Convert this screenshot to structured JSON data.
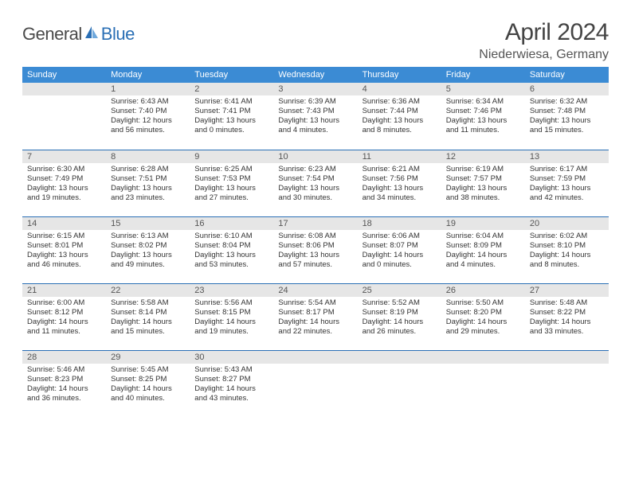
{
  "logo": {
    "text1": "General",
    "text2": "Blue"
  },
  "title": "April 2024",
  "location": "Niederwiesa, Germany",
  "weekdays": [
    "Sunday",
    "Monday",
    "Tuesday",
    "Wednesday",
    "Thursday",
    "Friday",
    "Saturday"
  ],
  "colors": {
    "header_bg": "#3b8bd4",
    "header_text": "#ffffff",
    "daynum_bg": "#e6e6e6",
    "rule": "#2a6fb5",
    "logo_gray": "#4a4a4a",
    "logo_blue": "#2a6fb5"
  },
  "leading_blanks": 1,
  "days": [
    {
      "n": 1,
      "sunrise": "6:43 AM",
      "sunset": "7:40 PM",
      "daylight": "12 hours and 56 minutes."
    },
    {
      "n": 2,
      "sunrise": "6:41 AM",
      "sunset": "7:41 PM",
      "daylight": "13 hours and 0 minutes."
    },
    {
      "n": 3,
      "sunrise": "6:39 AM",
      "sunset": "7:43 PM",
      "daylight": "13 hours and 4 minutes."
    },
    {
      "n": 4,
      "sunrise": "6:36 AM",
      "sunset": "7:44 PM",
      "daylight": "13 hours and 8 minutes."
    },
    {
      "n": 5,
      "sunrise": "6:34 AM",
      "sunset": "7:46 PM",
      "daylight": "13 hours and 11 minutes."
    },
    {
      "n": 6,
      "sunrise": "6:32 AM",
      "sunset": "7:48 PM",
      "daylight": "13 hours and 15 minutes."
    },
    {
      "n": 7,
      "sunrise": "6:30 AM",
      "sunset": "7:49 PM",
      "daylight": "13 hours and 19 minutes."
    },
    {
      "n": 8,
      "sunrise": "6:28 AM",
      "sunset": "7:51 PM",
      "daylight": "13 hours and 23 minutes."
    },
    {
      "n": 9,
      "sunrise": "6:25 AM",
      "sunset": "7:53 PM",
      "daylight": "13 hours and 27 minutes."
    },
    {
      "n": 10,
      "sunrise": "6:23 AM",
      "sunset": "7:54 PM",
      "daylight": "13 hours and 30 minutes."
    },
    {
      "n": 11,
      "sunrise": "6:21 AM",
      "sunset": "7:56 PM",
      "daylight": "13 hours and 34 minutes."
    },
    {
      "n": 12,
      "sunrise": "6:19 AM",
      "sunset": "7:57 PM",
      "daylight": "13 hours and 38 minutes."
    },
    {
      "n": 13,
      "sunrise": "6:17 AM",
      "sunset": "7:59 PM",
      "daylight": "13 hours and 42 minutes."
    },
    {
      "n": 14,
      "sunrise": "6:15 AM",
      "sunset": "8:01 PM",
      "daylight": "13 hours and 46 minutes."
    },
    {
      "n": 15,
      "sunrise": "6:13 AM",
      "sunset": "8:02 PM",
      "daylight": "13 hours and 49 minutes."
    },
    {
      "n": 16,
      "sunrise": "6:10 AM",
      "sunset": "8:04 PM",
      "daylight": "13 hours and 53 minutes."
    },
    {
      "n": 17,
      "sunrise": "6:08 AM",
      "sunset": "8:06 PM",
      "daylight": "13 hours and 57 minutes."
    },
    {
      "n": 18,
      "sunrise": "6:06 AM",
      "sunset": "8:07 PM",
      "daylight": "14 hours and 0 minutes."
    },
    {
      "n": 19,
      "sunrise": "6:04 AM",
      "sunset": "8:09 PM",
      "daylight": "14 hours and 4 minutes."
    },
    {
      "n": 20,
      "sunrise": "6:02 AM",
      "sunset": "8:10 PM",
      "daylight": "14 hours and 8 minutes."
    },
    {
      "n": 21,
      "sunrise": "6:00 AM",
      "sunset": "8:12 PM",
      "daylight": "14 hours and 11 minutes."
    },
    {
      "n": 22,
      "sunrise": "5:58 AM",
      "sunset": "8:14 PM",
      "daylight": "14 hours and 15 minutes."
    },
    {
      "n": 23,
      "sunrise": "5:56 AM",
      "sunset": "8:15 PM",
      "daylight": "14 hours and 19 minutes."
    },
    {
      "n": 24,
      "sunrise": "5:54 AM",
      "sunset": "8:17 PM",
      "daylight": "14 hours and 22 minutes."
    },
    {
      "n": 25,
      "sunrise": "5:52 AM",
      "sunset": "8:19 PM",
      "daylight": "14 hours and 26 minutes."
    },
    {
      "n": 26,
      "sunrise": "5:50 AM",
      "sunset": "8:20 PM",
      "daylight": "14 hours and 29 minutes."
    },
    {
      "n": 27,
      "sunrise": "5:48 AM",
      "sunset": "8:22 PM",
      "daylight": "14 hours and 33 minutes."
    },
    {
      "n": 28,
      "sunrise": "5:46 AM",
      "sunset": "8:23 PM",
      "daylight": "14 hours and 36 minutes."
    },
    {
      "n": 29,
      "sunrise": "5:45 AM",
      "sunset": "8:25 PM",
      "daylight": "14 hours and 40 minutes."
    },
    {
      "n": 30,
      "sunrise": "5:43 AM",
      "sunset": "8:27 PM",
      "daylight": "14 hours and 43 minutes."
    }
  ],
  "labels": {
    "sunrise": "Sunrise: ",
    "sunset": "Sunset: ",
    "daylight": "Daylight: "
  }
}
